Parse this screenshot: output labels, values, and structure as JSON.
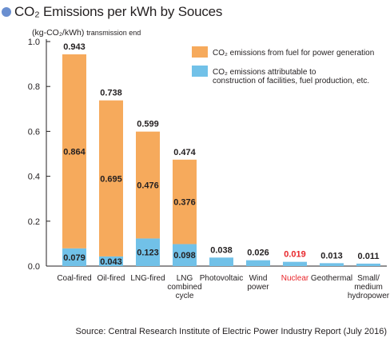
{
  "title": "CO₂ Emissions per kWh by Souces",
  "unit_label": "(kg-CO₂/kWh)",
  "unit_sub": "transmission end",
  "source": "Source: Central Research Institute of Electric Power Industry Report (July 2016)",
  "colors": {
    "fuel": "#f6aa5c",
    "facilities": "#71c1e8",
    "axis": "#231f20",
    "highlight": "#e8262b",
    "title_dot": "#6a8fd0"
  },
  "chart_data": {
    "type": "bar",
    "stacked": true,
    "ylim": [
      0,
      1.0
    ],
    "yticks": [
      "0.0",
      "0.2",
      "0.4",
      "0.6",
      "0.8",
      "1.0"
    ],
    "ytick_values": [
      0,
      0.2,
      0.4,
      0.6,
      0.8,
      1.0
    ],
    "grid": false,
    "legend_placement": "top-right",
    "categories": [
      [
        "Coal-fired"
      ],
      [
        "Oil-fired"
      ],
      [
        "LNG-fired"
      ],
      [
        "LNG",
        "combined",
        "cycle"
      ],
      [
        "Photovoltaic"
      ],
      [
        "Wind",
        "power"
      ],
      [
        "Nuclear"
      ],
      [
        "Geothermal"
      ],
      [
        "Small/",
        "medium",
        "hydropower"
      ]
    ],
    "highlight_category_index": 6,
    "series": [
      {
        "name": "CO₂ emissions attributable to construction of facilities, fuel production, etc.",
        "values": [
          0.079,
          0.043,
          0.123,
          0.098,
          0.038,
          0.026,
          0.019,
          0.013,
          0.011
        ],
        "labels": [
          "0.079",
          "0.043",
          "0.123",
          "0.098",
          null,
          null,
          null,
          null,
          null
        ]
      },
      {
        "name": "CO₂ emissions from fuel for power generation",
        "values": [
          0.864,
          0.695,
          0.476,
          0.376,
          0,
          0,
          0,
          0,
          0
        ],
        "labels": [
          "0.864",
          "0.695",
          "0.476",
          "0.376",
          null,
          null,
          null,
          null,
          null
        ]
      }
    ],
    "totals": [
      0.943,
      0.738,
      0.599,
      0.474,
      0.038,
      0.026,
      0.019,
      0.013,
      0.011
    ],
    "total_labels": [
      "0.943",
      "0.738",
      "0.599",
      "0.474",
      "0.038",
      "0.026",
      "0.019",
      "0.013",
      "0.011"
    ],
    "legend": [
      {
        "series_index": 1,
        "lines": [
          "CO₂ emissions from fuel for power generation"
        ]
      },
      {
        "series_index": 0,
        "lines": [
          "CO₂ emissions attributable to",
          "construction of facilities, fuel production, etc."
        ]
      }
    ]
  }
}
